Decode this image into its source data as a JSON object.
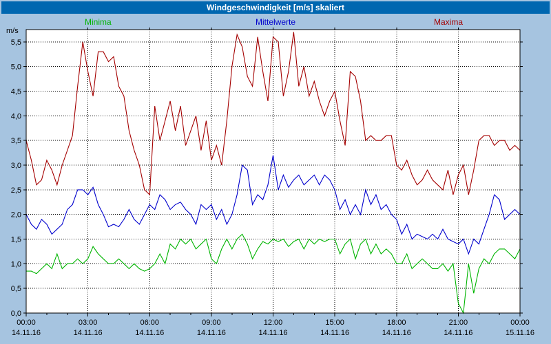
{
  "colors": {
    "frame_bg": "#a6c4e0",
    "titlebar_bg": "#0067b0",
    "plot_bg": "#ffffff",
    "grid": "#000000",
    "axis": "#000000"
  },
  "chart_data": {
    "type": "line",
    "title": "Windgeschwindigkeit [m/s] skaliert",
    "ylabel": "m/s",
    "xlabel": "",
    "legend_position": "top",
    "grid": "dotted",
    "xlim": [
      0,
      24
    ],
    "ylim": [
      0,
      5.75
    ],
    "x_unit": "hours",
    "x_step_hours": 0.25,
    "yticks": {
      "values": [
        0,
        0.5,
        1.0,
        1.5,
        2.0,
        2.5,
        3.0,
        3.5,
        4.0,
        4.5,
        5.0,
        5.5
      ],
      "labels": [
        "0,0",
        "0,5",
        "1,0",
        "1,5",
        "2,0",
        "2,5",
        "3,0",
        "3,5",
        "4,0",
        "4,5",
        "5,0",
        "5,5"
      ]
    },
    "xticks": {
      "values": [
        0,
        3,
        6,
        9,
        12,
        15,
        18,
        21,
        24
      ],
      "time_labels": [
        "00:00",
        "03:00",
        "06:00",
        "09:00",
        "12:00",
        "15:00",
        "18:00",
        "21:00",
        "00:00"
      ],
      "date_labels": [
        "14.11.16",
        "14.11.16",
        "14.11.16",
        "14.11.16",
        "14.11.16",
        "14.11.16",
        "14.11.16",
        "14.11.16",
        "15.11.16"
      ]
    },
    "series": [
      {
        "name": "Minima",
        "color": "#00b400",
        "values": [
          0.85,
          0.85,
          0.8,
          0.9,
          1.0,
          0.9,
          1.2,
          0.9,
          1.0,
          1.0,
          1.1,
          1.0,
          1.1,
          1.35,
          1.2,
          1.1,
          1.0,
          1.0,
          1.1,
          1.0,
          0.9,
          1.0,
          0.9,
          0.85,
          0.9,
          1.0,
          1.2,
          1.0,
          1.4,
          1.3,
          1.5,
          1.4,
          1.5,
          1.3,
          1.4,
          1.5,
          1.1,
          1.0,
          1.3,
          1.5,
          1.3,
          1.5,
          1.6,
          1.4,
          1.1,
          1.3,
          1.45,
          1.4,
          1.5,
          1.45,
          1.5,
          1.35,
          1.45,
          1.5,
          1.3,
          1.5,
          1.4,
          1.5,
          1.45,
          1.5,
          1.5,
          1.2,
          1.4,
          1.5,
          1.1,
          1.4,
          1.5,
          1.2,
          1.4,
          1.2,
          1.3,
          1.2,
          1.0,
          1.0,
          1.2,
          0.9,
          1.0,
          1.1,
          1.0,
          0.9,
          0.9,
          1.0,
          0.85,
          1.0,
          0.2,
          0.0,
          1.0,
          0.4,
          0.9,
          1.1,
          1.0,
          1.2,
          1.3,
          1.3,
          1.2,
          1.1,
          1.3
        ]
      },
      {
        "name": "Mittelwerte",
        "color": "#0000cd",
        "values": [
          2.0,
          1.8,
          1.7,
          1.9,
          1.8,
          1.6,
          1.7,
          1.8,
          2.1,
          2.2,
          2.5,
          2.5,
          2.4,
          2.55,
          2.2,
          2.0,
          1.75,
          1.8,
          1.75,
          1.9,
          2.1,
          1.9,
          1.8,
          2.0,
          2.2,
          2.1,
          2.4,
          2.3,
          2.1,
          2.2,
          2.25,
          2.1,
          2.0,
          1.8,
          2.2,
          2.1,
          2.2,
          1.9,
          2.1,
          1.8,
          2.0,
          2.4,
          3.0,
          2.9,
          2.2,
          2.4,
          2.3,
          2.6,
          3.2,
          2.5,
          2.8,
          2.55,
          2.7,
          2.8,
          2.6,
          2.7,
          2.8,
          2.6,
          2.8,
          2.7,
          2.5,
          2.1,
          2.3,
          2.0,
          2.2,
          2.0,
          2.5,
          2.2,
          2.4,
          2.1,
          2.2,
          2.0,
          1.9,
          1.6,
          1.8,
          1.5,
          1.6,
          1.55,
          1.5,
          1.6,
          1.5,
          1.7,
          1.5,
          1.45,
          1.4,
          1.5,
          1.2,
          1.5,
          1.4,
          1.7,
          2.0,
          2.4,
          2.3,
          1.9,
          2.0,
          2.1,
          2.0
        ]
      },
      {
        "name": "Maxima",
        "color": "#a40000",
        "values": [
          3.5,
          3.1,
          2.6,
          2.7,
          3.1,
          2.9,
          2.6,
          3.0,
          3.3,
          3.6,
          4.6,
          5.5,
          4.9,
          4.4,
          5.3,
          5.3,
          5.1,
          5.2,
          4.6,
          4.4,
          3.7,
          3.3,
          3.0,
          2.5,
          2.4,
          4.2,
          3.5,
          3.9,
          4.3,
          3.7,
          4.2,
          3.4,
          3.7,
          4.0,
          3.3,
          3.9,
          3.1,
          3.4,
          3.0,
          3.9,
          5.0,
          5.65,
          5.4,
          4.8,
          4.6,
          5.6,
          4.9,
          4.3,
          5.6,
          5.5,
          4.4,
          4.9,
          5.7,
          4.6,
          5.0,
          4.4,
          4.7,
          4.3,
          4.0,
          4.3,
          4.5,
          3.9,
          3.4,
          4.9,
          4.8,
          4.3,
          3.5,
          3.6,
          3.5,
          3.5,
          3.6,
          3.6,
          3.0,
          2.9,
          3.1,
          2.8,
          2.6,
          2.7,
          2.9,
          2.7,
          2.6,
          2.5,
          2.9,
          2.4,
          2.8,
          3.0,
          2.4,
          2.9,
          3.5,
          3.6,
          3.6,
          3.4,
          3.5,
          3.5,
          3.3,
          3.4,
          3.3
        ]
      }
    ]
  }
}
